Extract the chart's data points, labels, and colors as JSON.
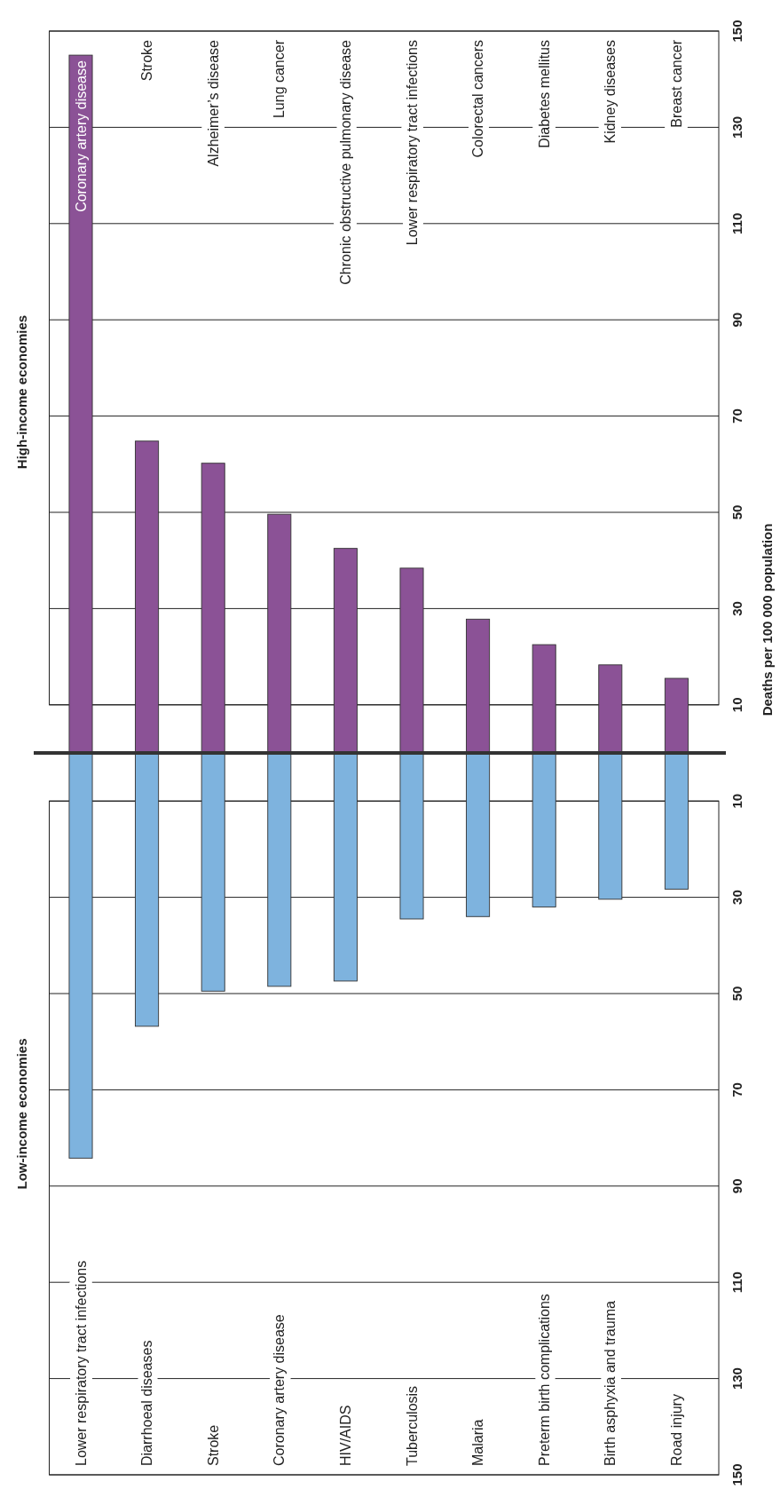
{
  "chart_data": [
    {
      "type": "bar",
      "title": "High-income economies",
      "ylabel": "Deaths per 100 000 population",
      "categories": [
        "Coronary artery disease",
        "Stroke",
        "Alzheimer’s disease",
        "Lung cancer",
        "Chronic obstructive pulmonary disease",
        "Lower respiratory tract infections",
        "Colorectal cancers",
        "Diabetes mellitus",
        "Kidney diseases",
        "Breast cancer"
      ],
      "values": [
        145,
        64.8,
        60.2,
        49.6,
        42.5,
        38.4,
        27.8,
        22.5,
        18.3,
        15.5
      ],
      "color": "#8b5296",
      "ylim": [
        0,
        150
      ],
      "yticks": [
        10,
        30,
        50,
        70,
        90,
        110,
        130,
        150
      ],
      "grid": "y"
    },
    {
      "type": "bar",
      "title": "Low-income economies",
      "categories": [
        "Lower respiratory tract infections",
        "Diarrhoeal diseases",
        "Stroke",
        "Coronary artery disease",
        "HIV/AIDS",
        "Tuberculosis",
        "Malaria",
        "Preterm birth complications",
        "Birth asphyxia and trauma",
        "Road injury"
      ],
      "values": [
        84.2,
        56.8,
        49.5,
        48.5,
        47.4,
        34.5,
        34.0,
        32.0,
        30.4,
        28.3
      ],
      "color": "#7eb3de",
      "ylim": [
        150,
        0
      ],
      "yticks": [
        10,
        30,
        50,
        70,
        90,
        110,
        130,
        150
      ],
      "grid": "y"
    }
  ]
}
